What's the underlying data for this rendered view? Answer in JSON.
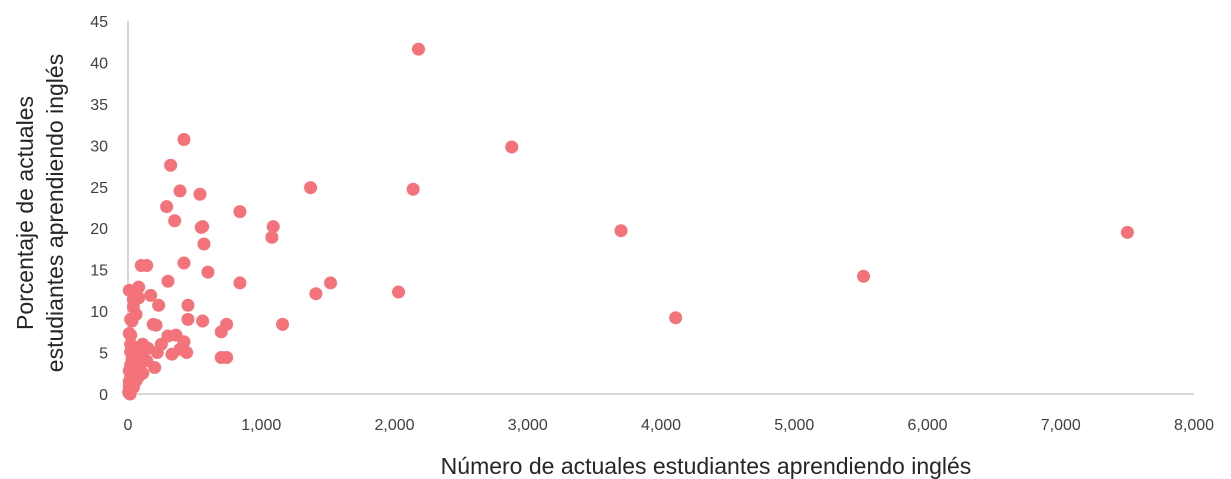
{
  "chart_data": {
    "type": "scatter",
    "title": "",
    "xlabel": "Número de actuales estudiantes aprendiendo inglés",
    "ylabel_lines": [
      "Porcentaje de actuales",
      "estudiantes aprendiendo inglés"
    ],
    "xlim": [
      0,
      8000
    ],
    "ylim": [
      0,
      45
    ],
    "x_ticks": [
      0,
      1000,
      2000,
      3000,
      4000,
      5000,
      6000,
      7000,
      8000
    ],
    "x_tick_labels": [
      "0",
      "1,000",
      "2,000",
      "3,000",
      "4,000",
      "5,000",
      "6,000",
      "7,000",
      "8,000"
    ],
    "y_ticks": [
      0,
      5,
      10,
      15,
      20,
      25,
      30,
      35,
      40,
      45
    ],
    "y_tick_labels": [
      "0",
      "5",
      "10",
      "15",
      "20",
      "25",
      "30",
      "35",
      "40",
      "45"
    ],
    "grid": false,
    "legend": "none",
    "marker_color": "#f4727a",
    "axis_color": "#bfbfbf",
    "points": [
      [
        2180,
        41.6
      ],
      [
        2880,
        29.8
      ],
      [
        420,
        30.7
      ],
      [
        320,
        27.6
      ],
      [
        1370,
        24.9
      ],
      [
        2140,
        24.7
      ],
      [
        390,
        24.5
      ],
      [
        540,
        24.1
      ],
      [
        290,
        22.6
      ],
      [
        840,
        22.0
      ],
      [
        350,
        20.9
      ],
      [
        1090,
        20.2
      ],
      [
        550,
        20.1
      ],
      [
        560,
        20.2
      ],
      [
        1080,
        18.9
      ],
      [
        570,
        18.1
      ],
      [
        3700,
        19.7
      ],
      [
        7500,
        19.5
      ],
      [
        420,
        15.8
      ],
      [
        600,
        14.7
      ],
      [
        100,
        15.5
      ],
      [
        140,
        15.5
      ],
      [
        5520,
        14.2
      ],
      [
        300,
        13.6
      ],
      [
        840,
        13.4
      ],
      [
        1520,
        13.4
      ],
      [
        1410,
        12.1
      ],
      [
        2030,
        12.3
      ],
      [
        10,
        12.5
      ],
      [
        40,
        12.2
      ],
      [
        80,
        12.9
      ],
      [
        170,
        11.9
      ],
      [
        40,
        11.4
      ],
      [
        80,
        11.6
      ],
      [
        40,
        10.5
      ],
      [
        230,
        10.7
      ],
      [
        450,
        10.7
      ],
      [
        60,
        9.6
      ],
      [
        20,
        9.0
      ],
      [
        30,
        8.8
      ],
      [
        450,
        9.0
      ],
      [
        4110,
        9.2
      ],
      [
        560,
        8.8
      ],
      [
        740,
        8.4
      ],
      [
        1160,
        8.4
      ],
      [
        190,
        8.4
      ],
      [
        210,
        8.3
      ],
      [
        10,
        7.3
      ],
      [
        20,
        7.1
      ],
      [
        300,
        7.0
      ],
      [
        360,
        7.1
      ],
      [
        700,
        7.5
      ],
      [
        250,
        6.0
      ],
      [
        420,
        6.3
      ],
      [
        110,
        6.0
      ],
      [
        20,
        6.0
      ],
      [
        50,
        5.6
      ],
      [
        150,
        5.5
      ],
      [
        390,
        5.4
      ],
      [
        20,
        5.1
      ],
      [
        80,
        4.9
      ],
      [
        120,
        5.3
      ],
      [
        220,
        5.0
      ],
      [
        330,
        4.8
      ],
      [
        440,
        5.0
      ],
      [
        700,
        4.4
      ],
      [
        740,
        4.4
      ],
      [
        30,
        4.2
      ],
      [
        60,
        4.4
      ],
      [
        100,
        4.3
      ],
      [
        140,
        4.0
      ],
      [
        20,
        3.5
      ],
      [
        50,
        3.3
      ],
      [
        90,
        3.5
      ],
      [
        200,
        3.2
      ],
      [
        10,
        2.8
      ],
      [
        40,
        2.6
      ],
      [
        70,
        2.7
      ],
      [
        110,
        2.5
      ],
      [
        20,
        2.0
      ],
      [
        50,
        1.9
      ],
      [
        80,
        2.1
      ],
      [
        10,
        1.5
      ],
      [
        30,
        1.3
      ],
      [
        60,
        1.6
      ],
      [
        10,
        0.9
      ],
      [
        20,
        0.5
      ],
      [
        40,
        0.8
      ],
      [
        5,
        0.2
      ],
      [
        15,
        0.0
      ]
    ]
  }
}
